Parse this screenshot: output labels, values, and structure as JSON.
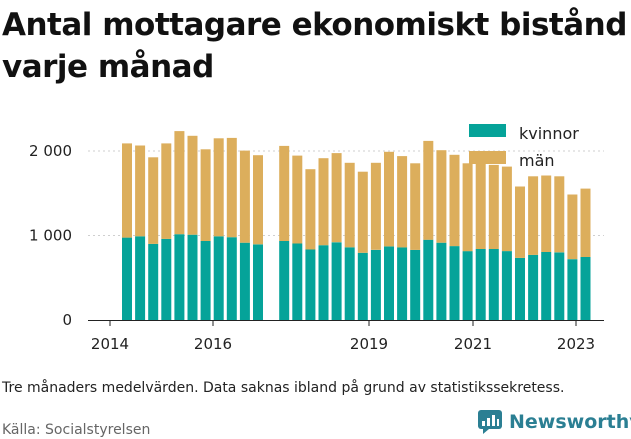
{
  "chart_data": {
    "type": "bar",
    "stacked": true,
    "title": "Antal mottagare ekonomiskt bistånd varje månad",
    "xlabel": "",
    "ylabel": "",
    "ylim": [
      0,
      2300
    ],
    "y_ticks": [
      0,
      1000,
      2000
    ],
    "y_tick_labels": [
      "0",
      "1 000",
      "2 000"
    ],
    "x_tick_labels": [
      "2014",
      "2016",
      "2019",
      "2021",
      "2023"
    ],
    "legend_position": "top-right",
    "colors": {
      "kvinnor": "#05a399",
      "män": "#dcae5c"
    },
    "series": [
      {
        "name": "kvinnor",
        "values": [
          975,
          990,
          900,
          960,
          1015,
          1010,
          935,
          990,
          980,
          915,
          895,
          null,
          935,
          905,
          835,
          885,
          920,
          860,
          795,
          830,
          870,
          860,
          830,
          950,
          915,
          875,
          815,
          840,
          840,
          815,
          735,
          770,
          805,
          800,
          720,
          745
        ]
      },
      {
        "name": "män",
        "values": [
          1115,
          1075,
          1025,
          1130,
          1220,
          1170,
          1085,
          1160,
          1175,
          1090,
          1055,
          null,
          1125,
          1040,
          950,
          1030,
          1055,
          1000,
          960,
          1030,
          1120,
          1080,
          1025,
          1170,
          1095,
          1080,
          1040,
          1010,
          995,
          1000,
          845,
          930,
          905,
          900,
          765,
          810
        ]
      }
    ]
  },
  "legend": {
    "kvinnor": "kvinnor",
    "man": "män"
  },
  "note": "Tre månaders medelvärden. Data saknas ibland på grund av statistikssekretess.",
  "source": "Källa: Socialstyrelsen",
  "brand": {
    "name": "Newsworthy",
    "color": "#2b7f93"
  }
}
